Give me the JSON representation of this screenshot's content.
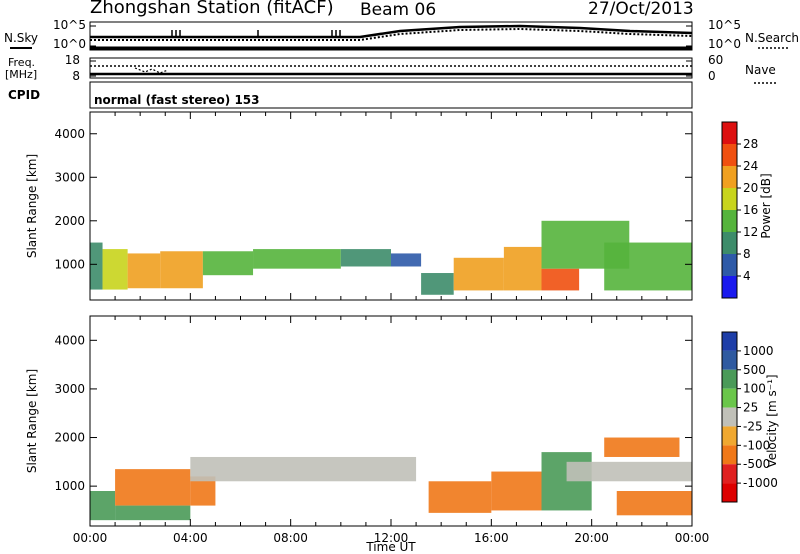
{
  "header": {
    "station": "Zhongshan Station (fitACF)",
    "beam": "Beam 06",
    "date": "27/Oct/2013"
  },
  "aux_panels": {
    "sky_label": "N.Sky",
    "search_label": "N.Search",
    "noise_left_ticks": [
      "10^5",
      "10^0"
    ],
    "noise_right_ticks": [
      "10^5",
      "10^0"
    ],
    "freq_label_line1": "Freq.",
    "freq_label_line2": "[MHz]",
    "freq_ticks": [
      "18",
      "8"
    ],
    "nave_label": "Nave",
    "nave_ticks": [
      "60",
      "0"
    ],
    "cpid_label": "CPID",
    "cpid_value": "normal (fast stereo) 153"
  },
  "colors": {
    "power": [
      "#1a1aee",
      "#2e5aa8",
      "#3d8c6a",
      "#55b43c",
      "#c8d41c",
      "#f0a020",
      "#f05010",
      "#dd1010"
    ],
    "velocity": [
      "#1e3ea8",
      "#2f5aa0",
      "#4a9a58",
      "#6ac64a",
      "#c0c0b8",
      "#f0a830",
      "#f07818",
      "#e02020",
      "#dd0000"
    ]
  },
  "chart_data": [
    {
      "type": "heatmap",
      "quantity": "Power",
      "xlabel": "Time UT",
      "x_ticks": [
        "00:00",
        "04:00",
        "08:00",
        "12:00",
        "16:00",
        "20:00",
        "00:00"
      ],
      "xlim_hours": [
        0,
        24
      ],
      "ylabel": "Slant Range [km]",
      "ylim": [
        180,
        4500
      ],
      "y_ticks": [
        1000,
        2000,
        3000,
        4000
      ],
      "colorbar_label": "Power [dB]",
      "colorbar_ticks": [
        "28",
        "24",
        "20",
        "16",
        "12",
        "8",
        "4"
      ],
      "colorbar_range": [
        0,
        30
      ],
      "data_cells": [
        {
          "t": [
            0.0,
            0.5
          ],
          "r": [
            420,
            1500
          ],
          "value": 10
        },
        {
          "t": [
            0.5,
            1.5
          ],
          "r": [
            420,
            1350
          ],
          "value": 18
        },
        {
          "t": [
            1.5,
            2.8
          ],
          "r": [
            450,
            1250
          ],
          "value": 21
        },
        {
          "t": [
            2.8,
            4.5
          ],
          "r": [
            450,
            1300
          ],
          "value": 19
        },
        {
          "t": [
            4.5,
            6.5
          ],
          "r": [
            750,
            1300
          ],
          "value": 14
        },
        {
          "t": [
            6.5,
            10.0
          ],
          "r": [
            900,
            1350
          ],
          "value": 13
        },
        {
          "t": [
            10.0,
            12.0
          ],
          "r": [
            950,
            1350
          ],
          "value": 10
        },
        {
          "t": [
            12.0,
            13.2
          ],
          "r": [
            950,
            1250
          ],
          "value": 7
        },
        {
          "t": [
            13.2,
            14.5
          ],
          "r": [
            300,
            800
          ],
          "value": 8
        },
        {
          "t": [
            14.5,
            16.5
          ],
          "r": [
            400,
            1150
          ],
          "value": 20
        },
        {
          "t": [
            16.5,
            18.0
          ],
          "r": [
            400,
            1400
          ],
          "value": 22
        },
        {
          "t": [
            18.0,
            19.5
          ],
          "r": [
            400,
            900
          ],
          "value": 25
        },
        {
          "t": [
            18.0,
            21.5
          ],
          "r": [
            900,
            2000
          ],
          "value": 12
        },
        {
          "t": [
            20.5,
            24.0
          ],
          "r": [
            400,
            1500
          ],
          "value": 12
        }
      ]
    },
    {
      "type": "heatmap",
      "quantity": "Velocity",
      "xlabel": "Time UT",
      "x_ticks": [
        "00:00",
        "04:00",
        "08:00",
        "12:00",
        "16:00",
        "20:00",
        "00:00"
      ],
      "xlim_hours": [
        0,
        24
      ],
      "ylabel": "Slant Range [km]",
      "ylim": [
        180,
        4500
      ],
      "y_ticks": [
        1000,
        2000,
        3000,
        4000
      ],
      "colorbar_label": "Velocity [m s⁻¹]",
      "colorbar_ticks": [
        "1000",
        "500",
        "100",
        "25",
        "-25",
        "-100",
        "-500",
        "-1000"
      ],
      "data_cells": [
        {
          "t": [
            0.0,
            1.0
          ],
          "r": [
            300,
            900
          ],
          "value": 150
        },
        {
          "t": [
            1.0,
            4.0
          ],
          "r": [
            600,
            1350
          ],
          "value": -200
        },
        {
          "t": [
            1.0,
            4.0
          ],
          "r": [
            300,
            600
          ],
          "value": 150
        },
        {
          "t": [
            4.0,
            5.0
          ],
          "r": [
            600,
            1200
          ],
          "value": -150
        },
        {
          "t": [
            4.0,
            13.0
          ],
          "r": [
            1100,
            1600
          ],
          "value": 0
        },
        {
          "t": [
            13.5,
            16.0
          ],
          "r": [
            450,
            1100
          ],
          "value": -300
        },
        {
          "t": [
            16.0,
            18.0
          ],
          "r": [
            500,
            1300
          ],
          "value": -350
        },
        {
          "t": [
            18.0,
            20.0
          ],
          "r": [
            500,
            1700
          ],
          "value": 150
        },
        {
          "t": [
            19.0,
            24.0
          ],
          "r": [
            1100,
            1500
          ],
          "value": 0
        },
        {
          "t": [
            20.5,
            23.5
          ],
          "r": [
            1600,
            2000
          ],
          "value": -150
        },
        {
          "t": [
            21.0,
            24.0
          ],
          "r": [
            400,
            900
          ],
          "value": -200
        }
      ]
    }
  ]
}
